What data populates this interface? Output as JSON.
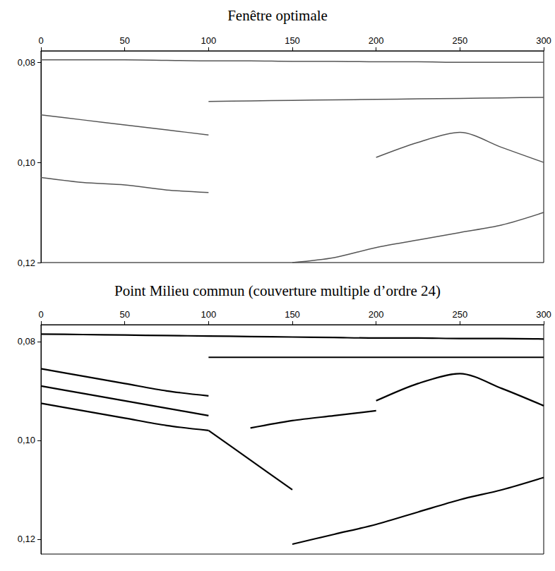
{
  "chart_data": [
    {
      "type": "line",
      "title": "Fenêtre optimale",
      "color": "#555555",
      "line_style": "solid",
      "grid": false,
      "x": [
        0,
        25,
        50,
        75,
        100,
        125,
        150,
        175,
        200,
        225,
        250,
        275,
        300
      ],
      "xlim": [
        0,
        300
      ],
      "xticks": [
        0,
        50,
        100,
        150,
        200,
        250,
        300
      ],
      "ylim": [
        0.0777,
        0.12
      ],
      "yticks": [
        {
          "value": 0.08,
          "label": "0,08"
        },
        {
          "value": 0.1,
          "label": "0,10"
        },
        {
          "value": 0.12,
          "label": "0,12"
        }
      ],
      "series": [
        {
          "values": [
            0.0795,
            0.0795,
            0.0795,
            0.0796,
            0.0797,
            0.0797,
            0.0798,
            0.0798,
            0.0799,
            0.0799,
            0.08,
            0.08,
            0.08
          ]
        },
        {
          "values": [
            null,
            null,
            null,
            null,
            0.0878,
            0.0877,
            0.0876,
            0.0875,
            0.0874,
            0.0873,
            0.0872,
            0.0871,
            0.087
          ]
        },
        {
          "values": [
            0.0905,
            0.0915,
            0.0925,
            0.0935,
            0.0945,
            null,
            null,
            null,
            null,
            null,
            null,
            null,
            null
          ]
        },
        {
          "values": [
            0.103,
            0.104,
            0.1045,
            0.1055,
            0.106,
            null,
            null,
            null,
            null,
            null,
            null,
            null,
            null
          ]
        },
        {
          "values": [
            null,
            null,
            null,
            null,
            null,
            null,
            null,
            null,
            0.099,
            0.096,
            0.094,
            0.097,
            0.1
          ]
        },
        {
          "values": [
            null,
            null,
            null,
            null,
            null,
            null,
            0.12,
            0.119,
            0.117,
            0.1155,
            0.114,
            0.1125,
            0.11
          ]
        }
      ]
    },
    {
      "type": "line",
      "title": "Point Milieu commun (couverture multiple d’ordre 24)",
      "color": "#000000",
      "line_style": "solid",
      "grid": false,
      "x": [
        0,
        25,
        50,
        75,
        100,
        125,
        150,
        175,
        200,
        225,
        250,
        275,
        300
      ],
      "xlim": [
        0,
        300
      ],
      "xticks": [
        0,
        50,
        100,
        150,
        200,
        250,
        300
      ],
      "ylim": [
        0.0766,
        0.123
      ],
      "yticks": [
        {
          "value": 0.08,
          "label": "0,08"
        },
        {
          "value": 0.1,
          "label": "0,10"
        },
        {
          "value": 0.12,
          "label": "0,12"
        }
      ],
      "series": [
        {
          "values": [
            0.0785,
            0.0786,
            0.0787,
            0.0788,
            0.0789,
            0.079,
            0.0791,
            0.0792,
            0.0793,
            0.0793,
            0.0794,
            0.0794,
            0.0795
          ]
        },
        {
          "values": [
            null,
            null,
            null,
            null,
            0.0832,
            0.0832,
            0.0832,
            0.0832,
            0.0832,
            0.0832,
            0.0832,
            0.0832,
            0.0832
          ]
        },
        {
          "values": [
            0.0855,
            0.087,
            0.0885,
            0.09,
            0.091,
            null,
            null,
            null,
            null,
            null,
            null,
            null,
            null
          ]
        },
        {
          "values": [
            0.089,
            0.0905,
            0.092,
            0.0935,
            0.095,
            null,
            null,
            null,
            null,
            null,
            null,
            null,
            null
          ]
        },
        {
          "values": [
            0.0925,
            0.094,
            0.0955,
            0.097,
            0.098,
            null,
            null,
            null,
            null,
            null,
            null,
            null,
            null
          ]
        },
        {
          "values": [
            null,
            null,
            null,
            null,
            null,
            0.0975,
            0.096,
            0.095,
            0.094,
            null,
            null,
            null,
            null
          ]
        },
        {
          "values": [
            null,
            null,
            null,
            null,
            null,
            null,
            null,
            null,
            0.092,
            0.0885,
            0.0865,
            0.0895,
            0.093
          ]
        },
        {
          "values": [
            null,
            null,
            null,
            null,
            0.098,
            0.104,
            0.11,
            null,
            null,
            null,
            null,
            null,
            null
          ]
        },
        {
          "values": [
            null,
            null,
            null,
            null,
            null,
            null,
            0.121,
            0.119,
            0.117,
            0.1145,
            0.112,
            0.11,
            0.1075
          ]
        }
      ]
    }
  ]
}
